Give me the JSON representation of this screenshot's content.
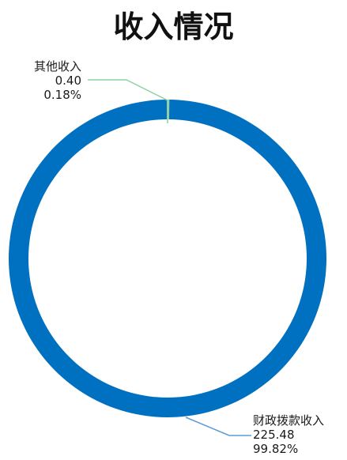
{
  "title": "收入情况",
  "colors": {
    "财政拨款收入": "#0070c0",
    "其他收入": "#8fd1a4",
    "leader_main": "#5b9bd5"
  },
  "chart_data": {
    "type": "pie",
    "variant": "donut",
    "title": "收入情况",
    "slices": [
      {
        "label": "其他收入",
        "value_text": "0.40",
        "value": 0.4,
        "percent_text": "0.18%",
        "percent": 0.18
      },
      {
        "label": "财政拨款收入",
        "value_text": "225.48",
        "value": 225.48,
        "percent_text": "99.82%",
        "percent": 99.82
      }
    ]
  }
}
